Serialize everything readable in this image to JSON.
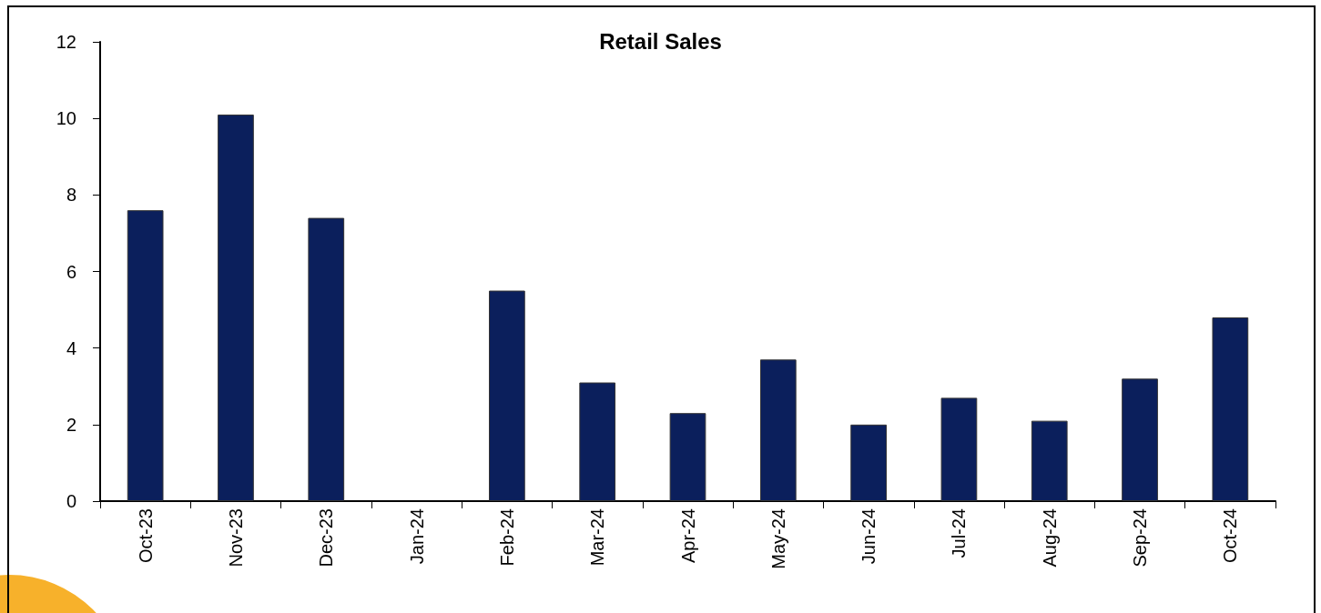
{
  "chart_data": {
    "type": "bar",
    "title": "Retail Sales",
    "categories": [
      "Oct-23",
      "Nov-23",
      "Dec-23",
      "Jan-24",
      "Feb-24",
      "Mar-24",
      "Apr-24",
      "May-24",
      "Jun-24",
      "Jul-24",
      "Aug-24",
      "Sep-24",
      "Oct-24"
    ],
    "values": [
      7.6,
      10.1,
      7.4,
      null,
      5.5,
      3.1,
      2.3,
      3.7,
      2.0,
      2.7,
      2.1,
      3.2,
      4.8
    ],
    "color": "#0b1f5c",
    "ylim": [
      0,
      12
    ],
    "yticks": [
      0,
      2,
      4,
      6,
      8,
      10,
      12
    ],
    "grid": false
  }
}
